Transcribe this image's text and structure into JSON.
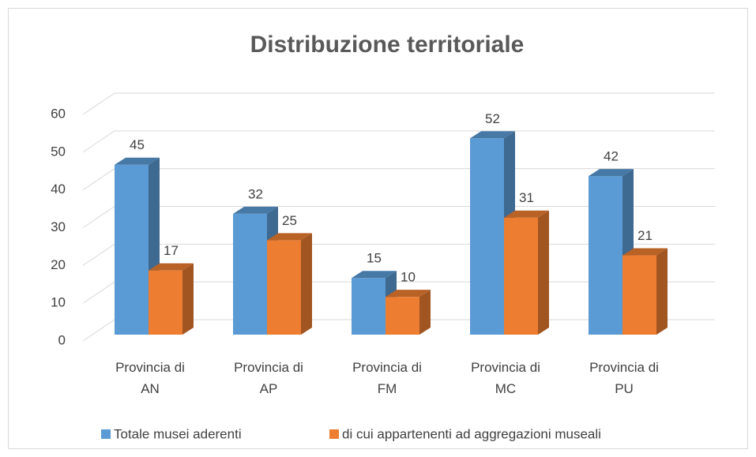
{
  "chart_data": {
    "type": "bar3d",
    "title": "Distribuzione territoriale",
    "categories": [
      "Provincia di AN",
      "Provincia di AP",
      "Provincia di FM",
      "Provincia di MC",
      "Provincia di PU"
    ],
    "series": [
      {
        "name": "Totale musei aderenti",
        "color": "#5b9bd5",
        "values": [
          45,
          32,
          15,
          52,
          42
        ]
      },
      {
        "name": "di cui appartenenti ad aggregazioni museali",
        "color": "#ed7d31",
        "values": [
          17,
          25,
          10,
          31,
          21
        ]
      }
    ],
    "ylim": [
      0,
      60
    ],
    "yticks": [
      0,
      10,
      20,
      30,
      40,
      50,
      60
    ],
    "grid": true,
    "legend": "bottom"
  }
}
